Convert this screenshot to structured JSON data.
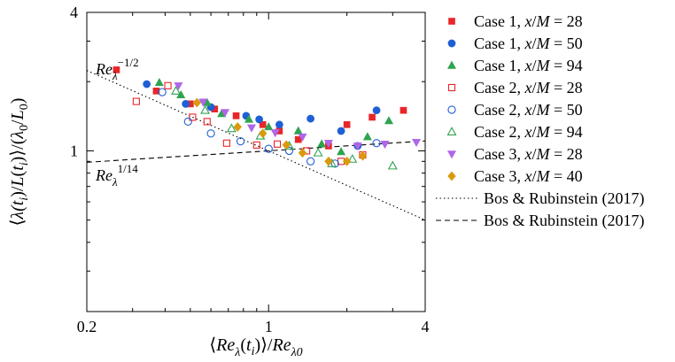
{
  "chart_data": {
    "type": "scatter",
    "title": "",
    "xlabel": "⟨Re_λ(t_i)⟩/Re_λ0",
    "ylabel": "⟨λ(t_i)/L(t_i)⟩/(λ_0/L_0)",
    "xscale": "log",
    "yscale": "log",
    "xlim": [
      0.2,
      4
    ],
    "ylim": [
      0.2,
      4
    ],
    "x_ticks": [
      {
        "value": 0.2,
        "label": "0.2"
      },
      {
        "value": 1,
        "label": "1"
      },
      {
        "value": 4,
        "label": "4"
      }
    ],
    "y_ticks": [
      {
        "value": 1,
        "label": "1"
      },
      {
        "value": 4,
        "label": "4"
      }
    ],
    "grid": false,
    "legend_position": "right",
    "series": [
      {
        "name": "Case 1, x/M = 28",
        "marker": "square",
        "filled": true,
        "color": "#e8262a",
        "points": [
          [
            0.26,
            2.25
          ],
          [
            0.37,
            1.82
          ],
          [
            0.5,
            1.6
          ],
          [
            0.62,
            1.52
          ],
          [
            0.75,
            1.42
          ],
          [
            0.95,
            1.3
          ],
          [
            1.1,
            1.22
          ],
          [
            1.3,
            1.12
          ],
          [
            1.7,
            1.05
          ],
          [
            2.0,
            1.3
          ],
          [
            2.5,
            1.4
          ],
          [
            3.3,
            1.5
          ]
        ]
      },
      {
        "name": "Case 1, x/M = 50",
        "marker": "circle",
        "filled": true,
        "color": "#1f5fd6",
        "points": [
          [
            0.34,
            1.95
          ],
          [
            0.48,
            1.6
          ],
          [
            0.6,
            1.55
          ],
          [
            0.82,
            1.42
          ],
          [
            0.92,
            1.37
          ],
          [
            1.1,
            1.3
          ],
          [
            1.45,
            1.38
          ],
          [
            1.9,
            1.22
          ],
          [
            2.2,
            1.05
          ],
          [
            2.6,
            1.5
          ]
        ]
      },
      {
        "name": "Case 1, x/M = 94",
        "marker": "triangle-up",
        "filled": true,
        "color": "#2ea44f",
        "points": [
          [
            0.38,
            1.98
          ],
          [
            0.46,
            1.75
          ],
          [
            0.58,
            1.62
          ],
          [
            0.66,
            1.45
          ],
          [
            0.84,
            1.37
          ],
          [
            1.0,
            1.27
          ],
          [
            1.3,
            1.22
          ],
          [
            1.6,
            1.07
          ],
          [
            1.9,
            0.99
          ],
          [
            2.4,
            1.15
          ],
          [
            2.9,
            1.35
          ]
        ]
      },
      {
        "name": "Case 2, x/M = 28",
        "marker": "square",
        "filled": false,
        "color": "#e8262a",
        "points": [
          [
            0.31,
            1.64
          ],
          [
            0.41,
            1.92
          ],
          [
            0.51,
            1.4
          ],
          [
            0.58,
            1.34
          ],
          [
            0.69,
            1.08
          ],
          [
            0.9,
            1.06
          ],
          [
            1.08,
            1.07
          ],
          [
            1.4,
            1.0
          ],
          [
            1.9,
            0.9
          ],
          [
            2.3,
            0.96
          ]
        ]
      },
      {
        "name": "Case 2, x/M = 50",
        "marker": "circle",
        "filled": false,
        "color": "#1f5fd6",
        "points": [
          [
            0.39,
            1.8
          ],
          [
            0.49,
            1.34
          ],
          [
            0.6,
            1.19
          ],
          [
            0.78,
            1.1
          ],
          [
            1.0,
            1.02
          ],
          [
            1.2,
            1.0
          ],
          [
            1.45,
            0.9
          ],
          [
            1.8,
            0.88
          ],
          [
            2.6,
            1.08
          ]
        ]
      },
      {
        "name": "Case 2, x/M = 94",
        "marker": "triangle-up",
        "filled": false,
        "color": "#2ea44f",
        "points": [
          [
            0.44,
            1.82
          ],
          [
            0.57,
            1.5
          ],
          [
            0.72,
            1.25
          ],
          [
            0.93,
            1.16
          ],
          [
            1.2,
            1.05
          ],
          [
            1.55,
            0.98
          ],
          [
            1.75,
            0.88
          ],
          [
            2.1,
            0.92
          ],
          [
            3.0,
            0.86
          ]
        ]
      },
      {
        "name": "Case 3, x/M = 28",
        "marker": "triangle-down",
        "filled": true,
        "color": "#b066e8",
        "points": [
          [
            0.45,
            1.92
          ],
          [
            0.56,
            1.63
          ],
          [
            0.68,
            1.47
          ],
          [
            0.86,
            1.26
          ],
          [
            1.06,
            1.2
          ],
          [
            1.35,
            1.15
          ],
          [
            1.7,
            1.08
          ],
          [
            2.2,
            1.05
          ],
          [
            2.8,
            1.07
          ],
          [
            3.7,
            1.09
          ]
        ]
      },
      {
        "name": "Case 3, x/M = 40",
        "marker": "diamond",
        "filled": true,
        "color": "#d99a0e",
        "points": [
          [
            0.53,
            1.62
          ],
          [
            0.76,
            1.27
          ],
          [
            0.95,
            1.19
          ],
          [
            1.17,
            1.06
          ],
          [
            1.35,
            0.98
          ],
          [
            1.7,
            0.9
          ],
          [
            2.0,
            0.9
          ],
          [
            2.3,
            0.95
          ]
        ]
      }
    ],
    "reference_lines": [
      {
        "name": "Bos & Rubinstein (2017)",
        "style": "dotted",
        "exponent": -0.5,
        "annotation_base": "Re",
        "annotation_sub": "λ",
        "annotation_sup": "−1/2"
      },
      {
        "name": "Bos & Rubinstein (2017)",
        "style": "dashed",
        "exponent": 0.0714,
        "annotation_base": "Re",
        "annotation_sub": "λ",
        "annotation_sup": "1/14"
      }
    ]
  }
}
